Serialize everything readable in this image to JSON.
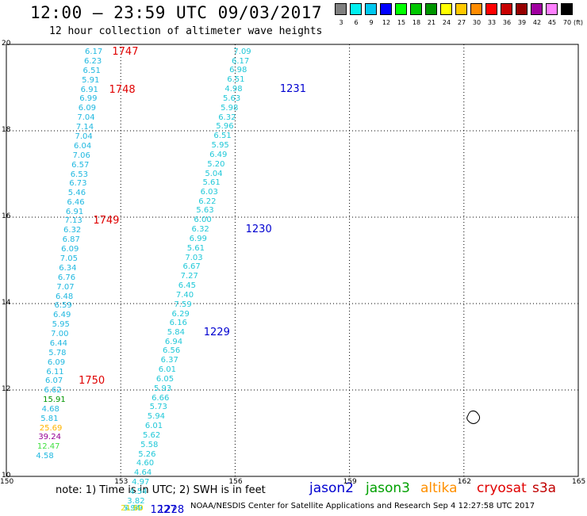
{
  "header": {
    "title": "12:00 – 23:59 UTC 09/03/2017",
    "subtitle": "12 hour collection of altimeter wave heights"
  },
  "legend": {
    "unit": "(ft)",
    "bins": [
      {
        "label": "3",
        "color": "#808080"
      },
      {
        "label": "6",
        "color": "#00f0f0"
      },
      {
        "label": "9",
        "color": "#00c8f0"
      },
      {
        "label": "12",
        "color": "#0000ff"
      },
      {
        "label": "15",
        "color": "#00ff00"
      },
      {
        "label": "18",
        "color": "#00c800"
      },
      {
        "label": "21",
        "color": "#009600"
      },
      {
        "label": "24",
        "color": "#ffff00"
      },
      {
        "label": "27",
        "color": "#ffc800"
      },
      {
        "label": "30",
        "color": "#ff8c00"
      },
      {
        "label": "33",
        "color": "#ff0000"
      },
      {
        "label": "36",
        "color": "#c80000"
      },
      {
        "label": "39",
        "color": "#960000"
      },
      {
        "label": "42",
        "color": "#a000a0"
      },
      {
        "label": "45",
        "color": "#ff80ff"
      },
      {
        "label": "70",
        "color": "#000000"
      }
    ]
  },
  "axes": {
    "lon_ticks": [
      "150",
      "153",
      "156",
      "159",
      "162",
      "165"
    ],
    "lat_ticks": [
      "10",
      "12",
      "14",
      "16",
      "18",
      "20"
    ],
    "lon_range": [
      150,
      165
    ],
    "lat_range": [
      10,
      20
    ]
  },
  "tracks": [
    {
      "name": "west-track",
      "color": "#20b8e0",
      "label_color": "#e00000",
      "points": [
        {
          "lon": 152.35,
          "lat": 19.82,
          "v": "6.17"
        },
        {
          "lon": 152.33,
          "lat": 19.6,
          "v": "6.23"
        },
        {
          "lon": 152.3,
          "lat": 19.38,
          "v": "6.51"
        },
        {
          "lon": 152.27,
          "lat": 19.16,
          "v": "5.91"
        },
        {
          "lon": 152.24,
          "lat": 18.94,
          "v": "6.91"
        },
        {
          "lon": 152.21,
          "lat": 18.73,
          "v": "6.99"
        },
        {
          "lon": 152.18,
          "lat": 18.51,
          "v": "6.09"
        },
        {
          "lon": 152.15,
          "lat": 18.29,
          "v": "7.04"
        },
        {
          "lon": 152.12,
          "lat": 18.07,
          "v": "7.14"
        },
        {
          "lon": 152.09,
          "lat": 17.86,
          "v": "7.04"
        },
        {
          "lon": 152.06,
          "lat": 17.64,
          "v": "6.04"
        },
        {
          "lon": 152.03,
          "lat": 17.42,
          "v": "7.06"
        },
        {
          "lon": 152.0,
          "lat": 17.2,
          "v": "6.57"
        },
        {
          "lon": 151.97,
          "lat": 16.98,
          "v": "6.53"
        },
        {
          "lon": 151.94,
          "lat": 16.77,
          "v": "6.73"
        },
        {
          "lon": 151.91,
          "lat": 16.55,
          "v": "5.46"
        },
        {
          "lon": 151.88,
          "lat": 16.33,
          "v": "6.46"
        },
        {
          "lon": 151.85,
          "lat": 16.11,
          "v": "6.91"
        },
        {
          "lon": 151.82,
          "lat": 15.9,
          "v": "7.13"
        },
        {
          "lon": 151.79,
          "lat": 15.68,
          "v": "6.32"
        },
        {
          "lon": 151.76,
          "lat": 15.46,
          "v": "6.87"
        },
        {
          "lon": 151.73,
          "lat": 15.24,
          "v": "6.09"
        },
        {
          "lon": 151.7,
          "lat": 15.03,
          "v": "7.05"
        },
        {
          "lon": 151.67,
          "lat": 14.81,
          "v": "6.34"
        },
        {
          "lon": 151.64,
          "lat": 14.59,
          "v": "6.76"
        },
        {
          "lon": 151.61,
          "lat": 14.37,
          "v": "7.07"
        },
        {
          "lon": 151.58,
          "lat": 14.15,
          "v": "6.48"
        },
        {
          "lon": 151.55,
          "lat": 13.94,
          "v": "6.59"
        },
        {
          "lon": 151.52,
          "lat": 13.72,
          "v": "6.49"
        },
        {
          "lon": 151.49,
          "lat": 13.5,
          "v": "5.95"
        },
        {
          "lon": 151.46,
          "lat": 13.28,
          "v": "7.00"
        },
        {
          "lon": 151.43,
          "lat": 13.07,
          "v": "6.44"
        },
        {
          "lon": 151.4,
          "lat": 12.85,
          "v": "5.78"
        },
        {
          "lon": 151.37,
          "lat": 12.63,
          "v": "6.09"
        },
        {
          "lon": 151.34,
          "lat": 12.41,
          "v": "6.11"
        },
        {
          "lon": 151.31,
          "lat": 12.2,
          "v": "6.07"
        },
        {
          "lon": 151.28,
          "lat": 11.98,
          "v": "6.62"
        },
        {
          "lon": 151.25,
          "lat": 11.76,
          "v": "15.91",
          "c": "#009600"
        },
        {
          "lon": 151.22,
          "lat": 11.54,
          "v": "4.68"
        },
        {
          "lon": 151.19,
          "lat": 11.32,
          "v": "5.81"
        },
        {
          "lon": 151.16,
          "lat": 11.11,
          "v": "25.69",
          "c": "#ffb400"
        },
        {
          "lon": 151.13,
          "lat": 10.89,
          "v": "39.24",
          "c": "#960096"
        },
        {
          "lon": 151.1,
          "lat": 10.67,
          "v": "12.47",
          "c": "#40e040"
        },
        {
          "lon": 151.07,
          "lat": 10.45,
          "v": "4.58"
        }
      ],
      "times": [
        {
          "text": "1747",
          "lon": 152.9,
          "lat": 19.82
        },
        {
          "text": "1748",
          "lon": 152.82,
          "lat": 18.94
        },
        {
          "text": "1749",
          "lon": 152.4,
          "lat": 15.9
        },
        {
          "text": "1750",
          "lon": 152.02,
          "lat": 12.2
        }
      ]
    },
    {
      "name": "east-track",
      "color": "#20c8d8",
      "label_color": "#0000d0",
      "points": [
        {
          "lon": 156.25,
          "lat": 19.82,
          "v": "7.09"
        },
        {
          "lon": 156.2,
          "lat": 19.6,
          "v": "6.17"
        },
        {
          "lon": 156.14,
          "lat": 19.39,
          "v": "6.98"
        },
        {
          "lon": 156.08,
          "lat": 19.17,
          "v": "6.51"
        },
        {
          "lon": 156.02,
          "lat": 18.95,
          "v": "4.98"
        },
        {
          "lon": 155.97,
          "lat": 18.74,
          "v": "5.63"
        },
        {
          "lon": 155.91,
          "lat": 18.52,
          "v": "5.98"
        },
        {
          "lon": 155.85,
          "lat": 18.3,
          "v": "6.32"
        },
        {
          "lon": 155.79,
          "lat": 18.09,
          "v": "5.96"
        },
        {
          "lon": 155.73,
          "lat": 17.87,
          "v": "6.51"
        },
        {
          "lon": 155.67,
          "lat": 17.65,
          "v": "5.95"
        },
        {
          "lon": 155.62,
          "lat": 17.44,
          "v": "6.49"
        },
        {
          "lon": 155.56,
          "lat": 17.22,
          "v": "5.20"
        },
        {
          "lon": 155.5,
          "lat": 17.0,
          "v": "5.04"
        },
        {
          "lon": 155.44,
          "lat": 16.79,
          "v": "5.61"
        },
        {
          "lon": 155.38,
          "lat": 16.57,
          "v": "6.03"
        },
        {
          "lon": 155.33,
          "lat": 16.35,
          "v": "6.22"
        },
        {
          "lon": 155.27,
          "lat": 16.14,
          "v": "5.63"
        },
        {
          "lon": 155.21,
          "lat": 15.92,
          "v": "6.00"
        },
        {
          "lon": 155.15,
          "lat": 15.7,
          "v": "6.32"
        },
        {
          "lon": 155.09,
          "lat": 15.49,
          "v": "6.99"
        },
        {
          "lon": 155.03,
          "lat": 15.27,
          "v": "5.61"
        },
        {
          "lon": 154.98,
          "lat": 15.05,
          "v": "7.03"
        },
        {
          "lon": 154.92,
          "lat": 14.84,
          "v": "6.67"
        },
        {
          "lon": 154.86,
          "lat": 14.62,
          "v": "7.27"
        },
        {
          "lon": 154.8,
          "lat": 14.4,
          "v": "6.45"
        },
        {
          "lon": 154.74,
          "lat": 14.19,
          "v": "7.40"
        },
        {
          "lon": 154.69,
          "lat": 13.97,
          "v": "7.59"
        },
        {
          "lon": 154.63,
          "lat": 13.75,
          "v": "6.29"
        },
        {
          "lon": 154.57,
          "lat": 13.54,
          "v": "6.16"
        },
        {
          "lon": 154.51,
          "lat": 13.32,
          "v": "5.84"
        },
        {
          "lon": 154.45,
          "lat": 13.1,
          "v": "6.94"
        },
        {
          "lon": 154.39,
          "lat": 12.89,
          "v": "6.56"
        },
        {
          "lon": 154.34,
          "lat": 12.67,
          "v": "6.37"
        },
        {
          "lon": 154.28,
          "lat": 12.45,
          "v": "6.01"
        },
        {
          "lon": 154.22,
          "lat": 12.24,
          "v": "6.05"
        },
        {
          "lon": 154.16,
          "lat": 12.02,
          "v": "5.93"
        },
        {
          "lon": 154.1,
          "lat": 11.8,
          "v": "6.66"
        },
        {
          "lon": 154.05,
          "lat": 11.59,
          "v": "5.73"
        },
        {
          "lon": 153.99,
          "lat": 11.37,
          "v": "5.94"
        },
        {
          "lon": 153.93,
          "lat": 11.15,
          "v": "6.01"
        },
        {
          "lon": 153.87,
          "lat": 10.94,
          "v": "5.62"
        },
        {
          "lon": 153.81,
          "lat": 10.72,
          "v": "5.58"
        },
        {
          "lon": 153.75,
          "lat": 10.5,
          "v": "5.26"
        },
        {
          "lon": 153.7,
          "lat": 10.29,
          "v": "4.60"
        },
        {
          "lon": 153.64,
          "lat": 10.07,
          "v": "4.64"
        },
        {
          "lon": 153.58,
          "lat": 9.85,
          "v": "4.97"
        },
        {
          "lon": 153.52,
          "lat": 9.64,
          "v": "4.54"
        },
        {
          "lon": 153.46,
          "lat": 9.42,
          "v": "3.82"
        },
        {
          "lon": 153.4,
          "lat": 9.2,
          "v": "4.99"
        },
        {
          "lon": 153.35,
          "lat": 8.99,
          "v": "5.94"
        },
        {
          "lon": 153.29,
          "lat": 8.77,
          "v": "21.60",
          "c": "#f0e000"
        }
      ],
      "times": [
        {
          "text": "1231",
          "lon": 157.3,
          "lat": 18.95
        },
        {
          "text": "1230",
          "lon": 156.4,
          "lat": 15.7
        },
        {
          "text": "1229",
          "lon": 155.3,
          "lat": 13.32
        },
        {
          "text": "1228",
          "lon": 154.1,
          "lat": 9.2
        },
        {
          "text": "1227",
          "lon": 153.9,
          "lat": 8.77
        }
      ]
    }
  ],
  "note": "note:  1) Time is in UTC;  2) SWH is in feet",
  "satellites": [
    {
      "name": "jason2",
      "color": "#0000d0"
    },
    {
      "name": "jason3",
      "color": "#00a000"
    },
    {
      "name": "altika",
      "color": "#ff9000"
    },
    {
      "name": "cryosat",
      "color": "#e00000"
    },
    {
      "name": "s3a",
      "color": "#c00000"
    }
  ],
  "footer": "NOAA/NESDIS Center for Satellite Applications and Research    Sep  4 12:27:58 UTC 2017",
  "island_icon": "island-outline-icon"
}
